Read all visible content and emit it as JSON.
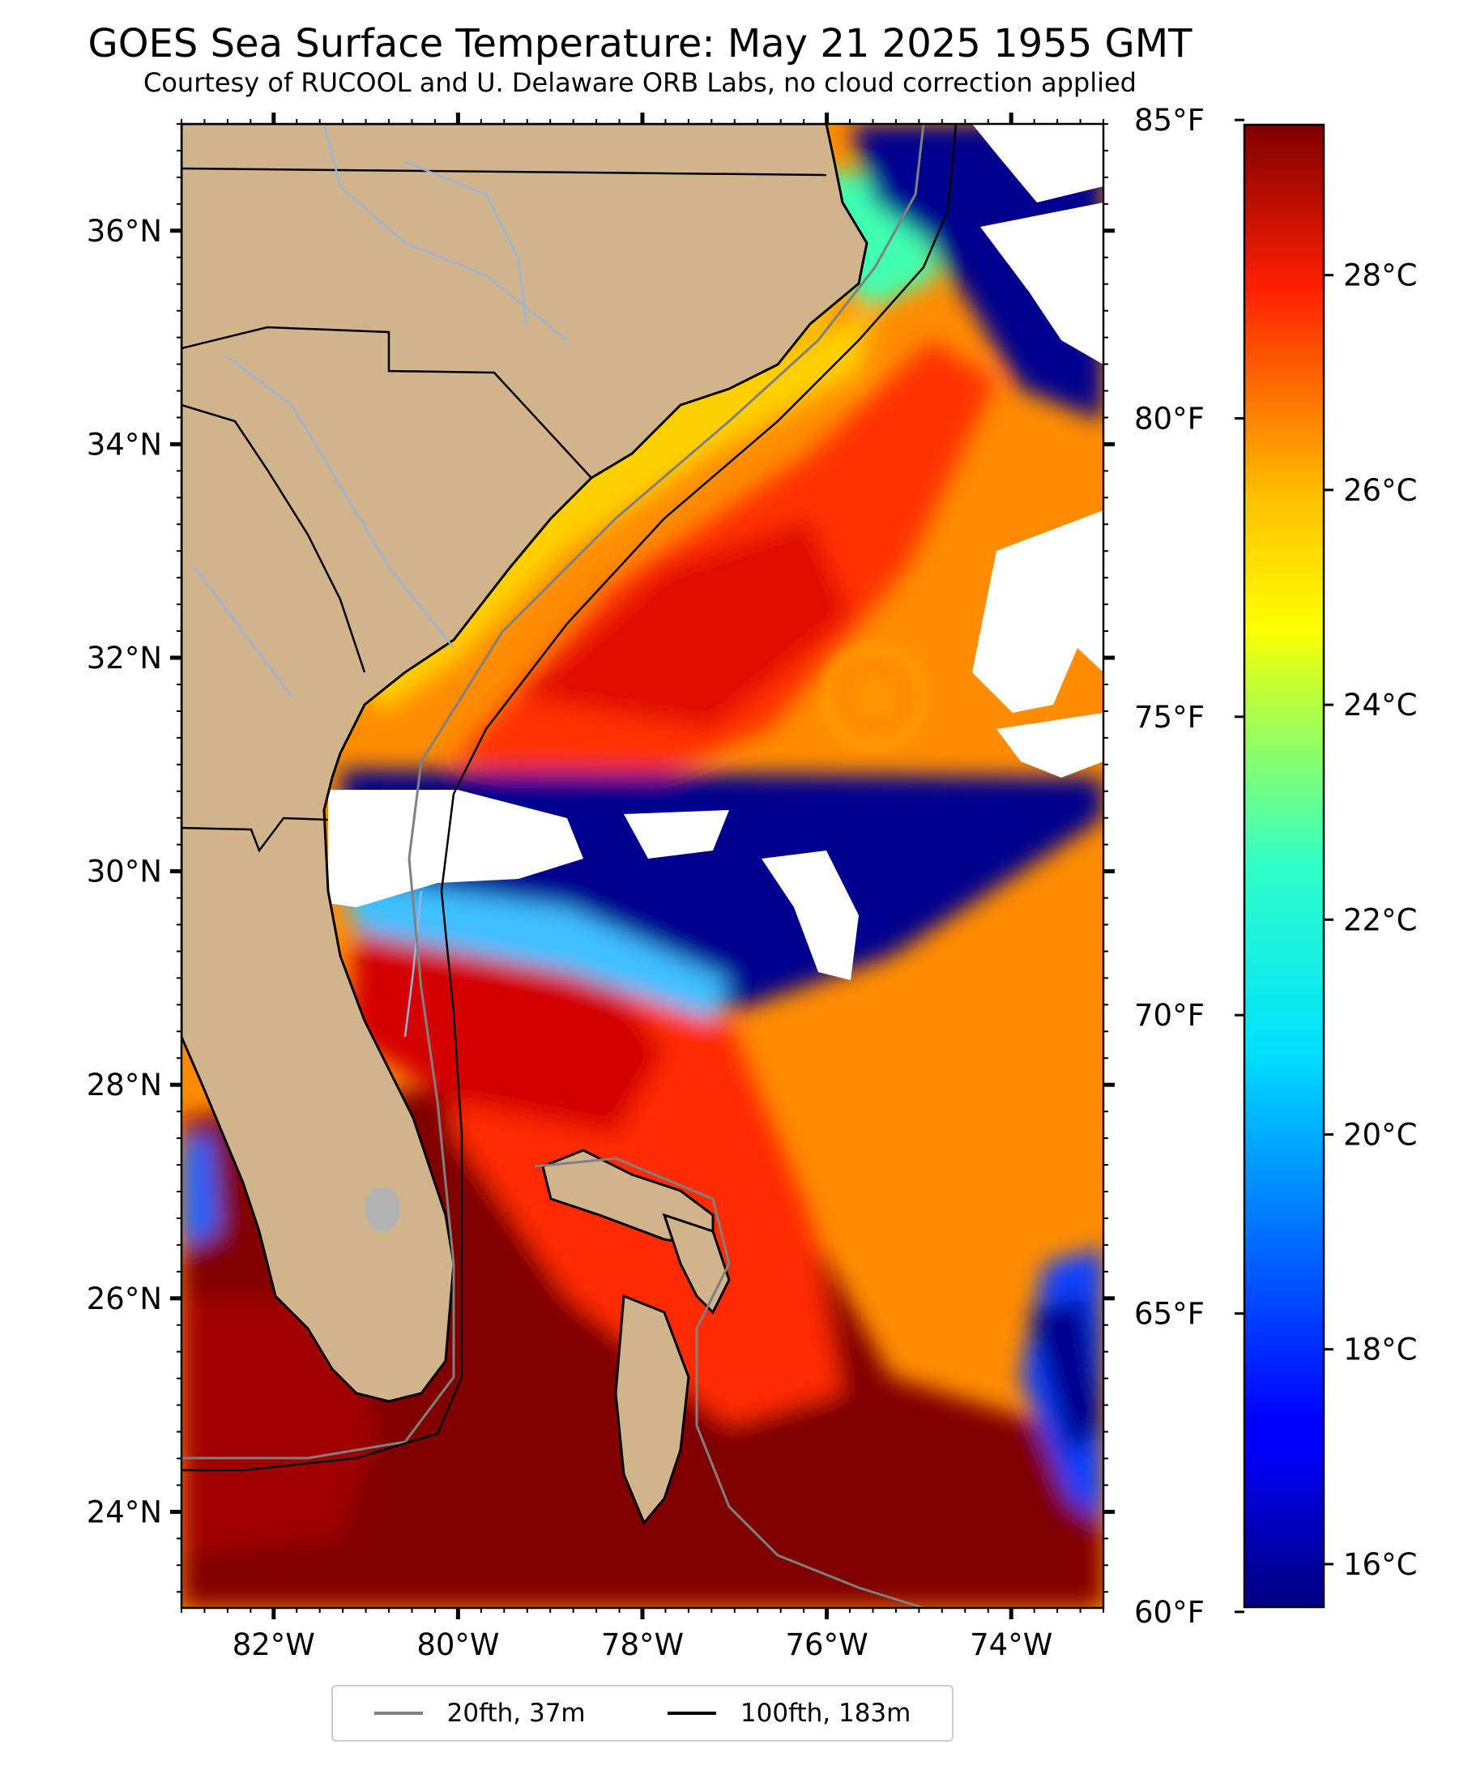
{
  "title": "GOES Sea Surface Temperature: May 21 2025 1955 GMT",
  "subtitle": "Courtesy of RUCOOL and U. Delaware ORB Labs, no cloud correction applied",
  "map": {
    "lon_range": [
      -83,
      -73
    ],
    "lat_range": [
      23.1,
      37.0
    ],
    "lat_ticks": [
      {
        "value": 36,
        "label": "36°N"
      },
      {
        "value": 34,
        "label": "34°N"
      },
      {
        "value": 32,
        "label": "32°N"
      },
      {
        "value": 30,
        "label": "30°N"
      },
      {
        "value": 28,
        "label": "28°N"
      },
      {
        "value": 26,
        "label": "26°N"
      },
      {
        "value": 24,
        "label": "24°N"
      }
    ],
    "lon_ticks": [
      {
        "value": -82,
        "label": "82°W"
      },
      {
        "value": -80,
        "label": "80°W"
      },
      {
        "value": -78,
        "label": "78°W"
      },
      {
        "value": -76,
        "label": "76°W"
      },
      {
        "value": -74,
        "label": "74°W"
      }
    ],
    "colors": {
      "land": "#d2b48c",
      "cloud": "#ffffff",
      "lake": "#b3b3b3",
      "river": "#9bb5d8",
      "contour_20fth": "#808080",
      "contour_100fth": "#000000"
    }
  },
  "colorbar": {
    "colormap": "jet",
    "celsius_range": [
      15.6,
      29.4
    ],
    "celsius_ticks": [
      {
        "value": 16,
        "label": "16°C"
      },
      {
        "value": 18,
        "label": "18°C"
      },
      {
        "value": 20,
        "label": "20°C"
      },
      {
        "value": 22,
        "label": "22°C"
      },
      {
        "value": 24,
        "label": "24°C"
      },
      {
        "value": 26,
        "label": "26°C"
      },
      {
        "value": 28,
        "label": "28°C"
      }
    ],
    "fahrenheit_ticks": [
      {
        "value": 60,
        "label": "60°F"
      },
      {
        "value": 65,
        "label": "65°F"
      },
      {
        "value": 70,
        "label": "70°F"
      },
      {
        "value": 75,
        "label": "75°F"
      },
      {
        "value": 80,
        "label": "80°F"
      },
      {
        "value": 85,
        "label": "85°F"
      }
    ]
  },
  "legend": {
    "items": [
      {
        "label": "20fth, 37m",
        "color": "#808080"
      },
      {
        "label": "100fth, 183m",
        "color": "#000000"
      }
    ]
  }
}
